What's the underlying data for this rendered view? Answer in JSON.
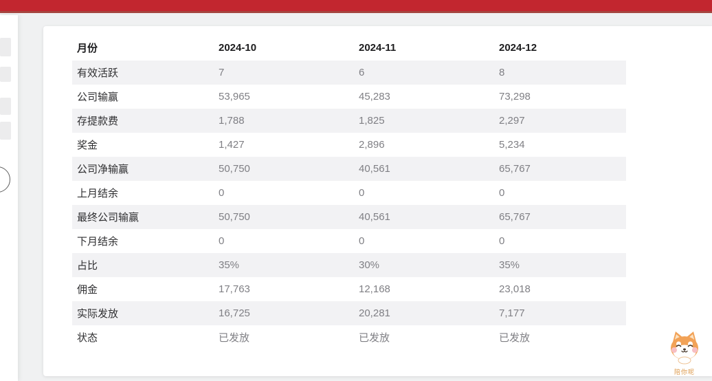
{
  "table": {
    "header": {
      "label": "月份",
      "columns": [
        "2024-10",
        "2024-11",
        "2024-12"
      ]
    },
    "rows": [
      {
        "label": "有效活跃",
        "values": [
          "7",
          "6",
          "8"
        ]
      },
      {
        "label": "公司输赢",
        "values": [
          "53,965",
          "45,283",
          "73,298"
        ]
      },
      {
        "label": "存提款费",
        "values": [
          "1,788",
          "1,825",
          "2,297"
        ]
      },
      {
        "label": "奖金",
        "values": [
          "1,427",
          "2,896",
          "5,234"
        ]
      },
      {
        "label": "公司净输赢",
        "values": [
          "50,750",
          "40,561",
          "65,767"
        ]
      },
      {
        "label": "上月结余",
        "values": [
          "0",
          "0",
          "0"
        ]
      },
      {
        "label": "最终公司输赢",
        "values": [
          "50,750",
          "40,561",
          "65,767"
        ]
      },
      {
        "label": "下月结余",
        "values": [
          "0",
          "0",
          "0"
        ]
      },
      {
        "label": "占比",
        "values": [
          "35%",
          "30%",
          "35%"
        ]
      },
      {
        "label": "佣金",
        "values": [
          "17,763",
          "12,168",
          "23,018"
        ]
      },
      {
        "label": "实际发放",
        "values": [
          "16,725",
          "20,281",
          "7,177"
        ]
      },
      {
        "label": "状态",
        "values": [
          "已发放",
          "已发放",
          "已发放"
        ]
      }
    ]
  },
  "mascot": {
    "text": "陪你呢"
  },
  "colors": {
    "topbar_red": "#c2262f",
    "topbar_border": "#a5453f",
    "stripe": "#f2f2f4",
    "label_text": "#2f2f31",
    "value_text": "#7f7f84",
    "mascot_orange": "#f2a257"
  }
}
